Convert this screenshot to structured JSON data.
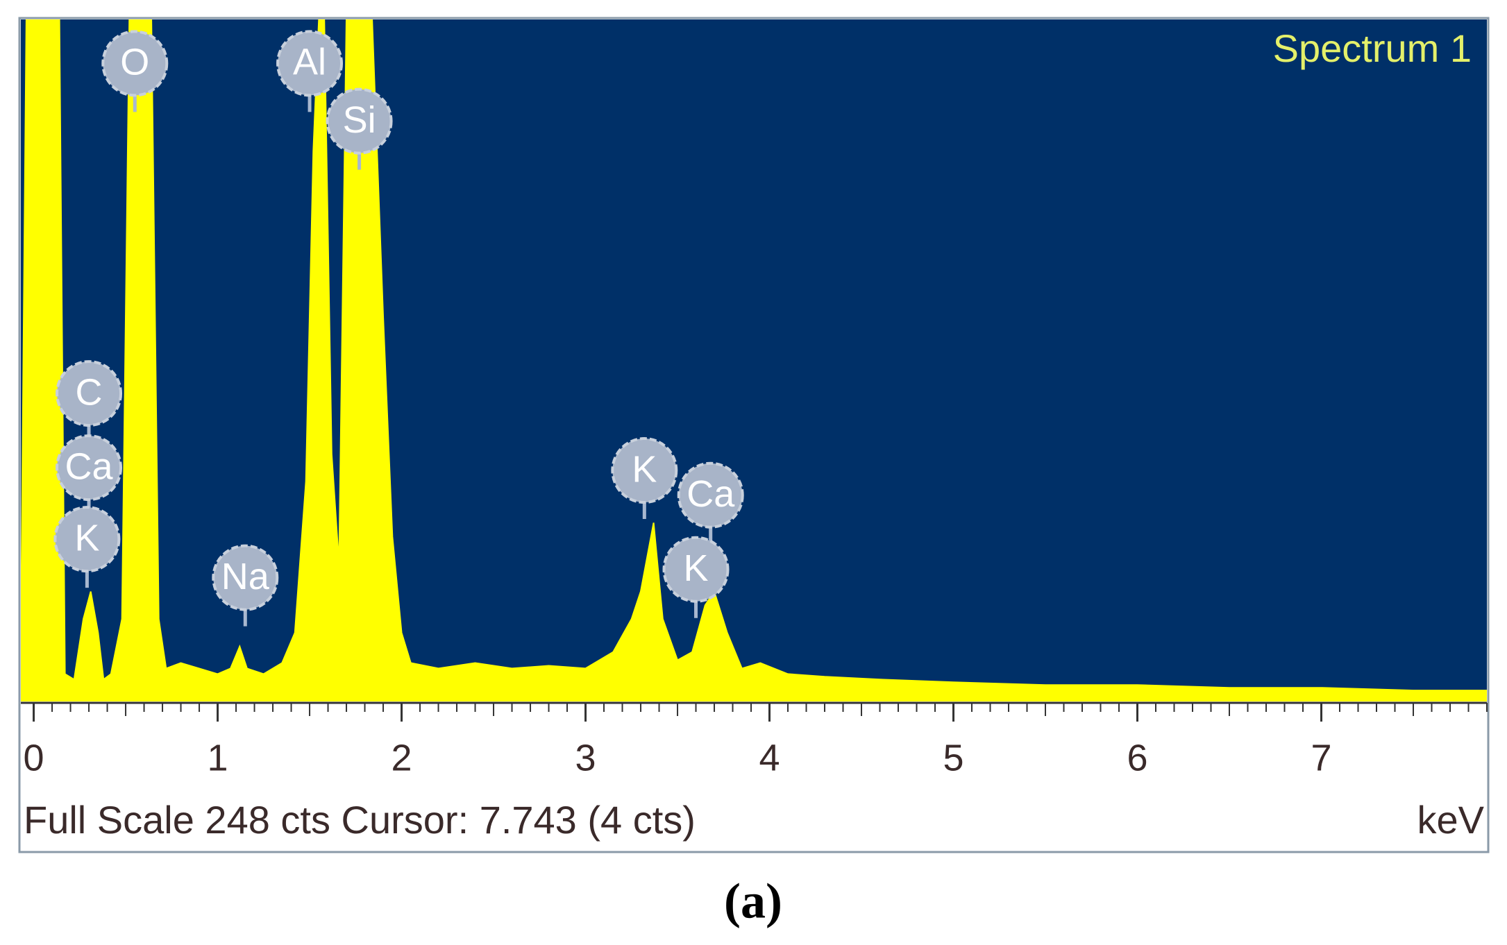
{
  "chart_data": {
    "type": "area",
    "title": "Spectrum 1",
    "x_label": "keV",
    "footer": "Full Scale 248 cts Cursor: 7.743  (4 cts)",
    "caption": "(a)",
    "color": "#ffff00",
    "background": "#003068",
    "x": [
      -0.07,
      -0.04,
      0.0,
      0.1,
      0.14,
      0.17,
      0.22,
      0.27,
      0.31,
      0.35,
      0.38,
      0.42,
      0.48,
      0.52,
      0.58,
      0.64,
      0.68,
      0.72,
      0.8,
      0.9,
      1.0,
      1.07,
      1.12,
      1.16,
      1.25,
      1.35,
      1.42,
      1.48,
      1.52,
      1.55,
      1.58,
      1.62,
      1.66,
      1.7,
      1.74,
      1.84,
      1.9,
      1.95,
      2.0,
      2.05,
      2.2,
      2.4,
      2.6,
      2.8,
      3.0,
      3.15,
      3.25,
      3.3,
      3.37,
      3.42,
      3.5,
      3.58,
      3.65,
      3.7,
      3.77,
      3.85,
      3.95,
      4.1,
      4.3,
      4.6,
      5.0,
      5.5,
      6.0,
      6.5,
      7.0,
      7.5,
      7.743,
      7.9
    ],
    "values": [
      20,
      248,
      248,
      248,
      248,
      10,
      8,
      30,
      40,
      25,
      8,
      10,
      30,
      248,
      248,
      248,
      30,
      12,
      14,
      12,
      10,
      12,
      20,
      12,
      10,
      14,
      25,
      80,
      200,
      248,
      248,
      90,
      50,
      248,
      248,
      248,
      140,
      60,
      25,
      14,
      12,
      14,
      12,
      13,
      12,
      18,
      30,
      40,
      65,
      30,
      15,
      18,
      35,
      40,
      25,
      12,
      14,
      10,
      9,
      8,
      7,
      6,
      6,
      5,
      5,
      4,
      4,
      4
    ],
    "xlim": [
      -0.07,
      7.9
    ],
    "ylim": [
      0,
      248
    ],
    "xticks": [
      0,
      1,
      2,
      3,
      4,
      5,
      6,
      7
    ],
    "annotations": [
      {
        "label": "O",
        "x": 0.55,
        "y": 232
      },
      {
        "label": "Al",
        "x": 1.5,
        "y": 232
      },
      {
        "label": "Si",
        "x": 1.77,
        "y": 211
      },
      {
        "label": "C",
        "x": 0.3,
        "y": 112
      },
      {
        "label": "Ca",
        "x": 0.3,
        "y": 85
      },
      {
        "label": "K",
        "x": 0.29,
        "y": 59
      },
      {
        "label": "Na",
        "x": 1.15,
        "y": 45
      },
      {
        "label": "K",
        "x": 3.32,
        "y": 84
      },
      {
        "label": "Ca",
        "x": 3.68,
        "y": 75
      },
      {
        "label": "K",
        "x": 3.6,
        "y": 48
      }
    ]
  }
}
